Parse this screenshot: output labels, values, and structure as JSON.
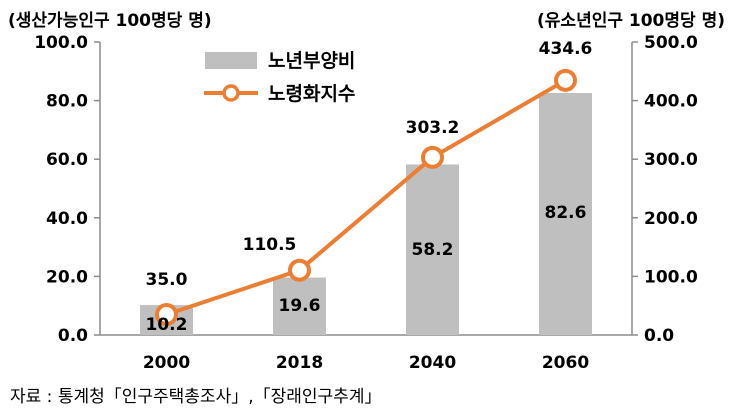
{
  "left_axis_title": "(생산가능인구 100명당 명)",
  "right_axis_title": "(유소년인구 100명당 명)",
  "source": "자료 : 통계청「인구주택총조사」,「장래인구추계」",
  "chart_data": {
    "type": "bar",
    "categories": [
      "2000",
      "2018",
      "2040",
      "2060"
    ],
    "series": [
      {
        "name": "노년부양비",
        "type": "bar",
        "axis": "left",
        "color": "#bfbfbf",
        "values": [
          10.2,
          19.6,
          58.2,
          82.6
        ],
        "labels": [
          "10.2",
          "19.6",
          "58.2",
          "82.6"
        ]
      },
      {
        "name": "노령화지수",
        "type": "line",
        "axis": "right",
        "color": "#ed7d31",
        "values": [
          35.0,
          110.5,
          303.2,
          434.6
        ],
        "labels": [
          "35.0",
          "110.5",
          "303.2",
          "434.6"
        ]
      }
    ],
    "left_axis": {
      "min": 0,
      "max": 100,
      "ticks": [
        "0.0",
        "20.0",
        "40.0",
        "60.0",
        "80.0",
        "100.0"
      ]
    },
    "right_axis": {
      "min": 0,
      "max": 500,
      "ticks": [
        "0.0",
        "100.0",
        "200.0",
        "300.0",
        "400.0",
        "500.0"
      ]
    },
    "legend_position": "top-center",
    "grid": false
  }
}
